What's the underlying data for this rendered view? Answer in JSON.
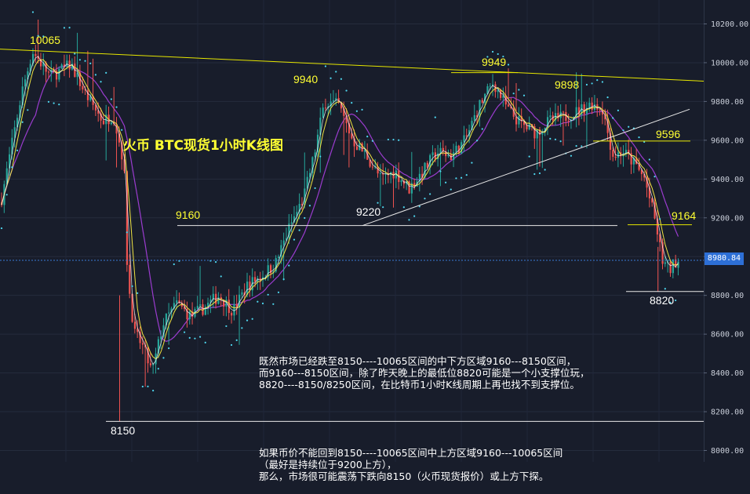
{
  "title": "火币   BTC现货1小时K线图",
  "note": {
    "para1": "既然市场已经跌至8150----10065区间的中下方区域9160---8150区间，\n而9160---8150区间，除了昨天晚上的最低位8820可能是一个小支撑位玩，\n8820----8150/8250区间，在比特币1小时K线周期上再也找不到支撑位。",
    "para2": "如果币价不能回到8150----10065区间中上方区域9160---10065区间\n（最好是持续位于9200上方），\n那么，市场很可能震荡下跌向8150（火币现货报价）或上方下探。"
  },
  "current_price": "8980.84",
  "colors": {
    "background": "#181d2b",
    "up": "#26a69a",
    "down": "#ef5350",
    "resistance_line": "#e6e600",
    "support_line": "#e8e8e8",
    "purple_ma": "#9b3ccf",
    "yellow_ma": "#f0e442",
    "white_ma": "#ffffff",
    "sar_dots": "#4fd8f0",
    "price_line": "#3a7bd5",
    "level_yellow": "#ffff33",
    "level_white": "#ffffff"
  },
  "chart_data": {
    "type": "candlestick",
    "title": "火币   BTC现货1小时K线图",
    "y_axis": {
      "ticks": [
        "10200.00",
        "10000.00",
        "9800.00",
        "9600.00",
        "9400.00",
        "9200.00",
        "9000.00",
        "8800.00",
        "8600.00",
        "8400.00",
        "8200.00",
        "8000.00"
      ],
      "range": [
        7990,
        10280
      ],
      "grid": true
    },
    "key_levels": [
      {
        "label": "10065",
        "value": 10065,
        "color": "yellow"
      },
      {
        "label": "9949",
        "value": 9949,
        "color": "yellow"
      },
      {
        "label": "9940",
        "value": 9940,
        "color": "yellow"
      },
      {
        "label": "9898",
        "value": 9898,
        "color": "yellow"
      },
      {
        "label": "9596",
        "value": 9596,
        "color": "yellow"
      },
      {
        "label": "9164",
        "value": 9164,
        "color": "yellow"
      },
      {
        "label": "9160",
        "value": 9160,
        "color": "yellow"
      },
      {
        "label": "9220",
        "value": 9220,
        "color": "white"
      },
      {
        "label": "8820",
        "value": 8820,
        "color": "white"
      },
      {
        "label": "8150",
        "value": 8150,
        "color": "white"
      }
    ],
    "trendlines": [
      {
        "name": "resistance",
        "from": [
          0,
          10070
        ],
        "to": [
          1,
          9905
        ]
      },
      {
        "name": "rising-support",
        "from": [
          0.515,
          9160
        ],
        "to": [
          0.98,
          9760
        ]
      }
    ],
    "price_path": [
      [
        0.0,
        9280
      ],
      [
        0.03,
        9850
      ],
      [
        0.045,
        10060
      ],
      [
        0.07,
        9930
      ],
      [
        0.1,
        9990
      ],
      [
        0.12,
        9840
      ],
      [
        0.145,
        9700
      ],
      [
        0.16,
        9730
      ],
      [
        0.175,
        9480
      ],
      [
        0.18,
        8900
      ],
      [
        0.19,
        8600
      ],
      [
        0.2,
        8550
      ],
      [
        0.215,
        8400
      ],
      [
        0.23,
        8650
      ],
      [
        0.25,
        8760
      ],
      [
        0.27,
        8690
      ],
      [
        0.29,
        8740
      ],
      [
        0.31,
        8800
      ],
      [
        0.33,
        8720
      ],
      [
        0.35,
        8850
      ],
      [
        0.37,
        8900
      ],
      [
        0.39,
        8960
      ],
      [
        0.41,
        9150
      ],
      [
        0.43,
        9300
      ],
      [
        0.445,
        9520
      ],
      [
        0.46,
        9800
      ],
      [
        0.48,
        9780
      ],
      [
        0.5,
        9600
      ],
      [
        0.52,
        9520
      ],
      [
        0.54,
        9400
      ],
      [
        0.56,
        9440
      ],
      [
        0.58,
        9350
      ],
      [
        0.6,
        9440
      ],
      [
        0.62,
        9540
      ],
      [
        0.64,
        9520
      ],
      [
        0.66,
        9600
      ],
      [
        0.68,
        9780
      ],
      [
        0.7,
        9900
      ],
      [
        0.72,
        9760
      ],
      [
        0.74,
        9680
      ],
      [
        0.76,
        9640
      ],
      [
        0.78,
        9700
      ],
      [
        0.8,
        9720
      ],
      [
        0.82,
        9750
      ],
      [
        0.84,
        9790
      ],
      [
        0.855,
        9760
      ],
      [
        0.87,
        9520
      ],
      [
        0.885,
        9540
      ],
      [
        0.9,
        9480
      ],
      [
        0.915,
        9400
      ],
      [
        0.93,
        9180
      ],
      [
        0.94,
        8980
      ],
      [
        0.95,
        8930
      ],
      [
        0.96,
        8980
      ]
    ]
  }
}
